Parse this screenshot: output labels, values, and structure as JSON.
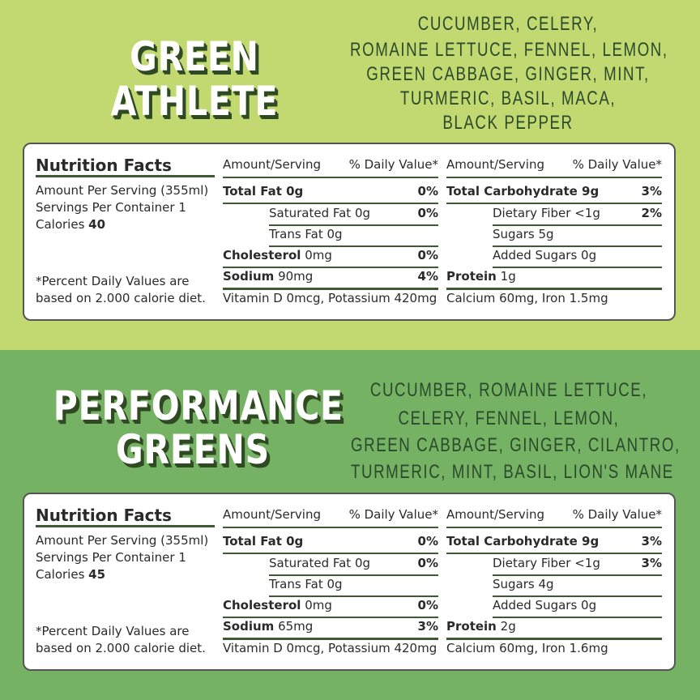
{
  "sections": [
    {
      "title": [
        "GREEN",
        "ATHLETE"
      ],
      "ingredients": [
        "CUCUMBER, CELERY,",
        "ROMAINE LETTUCE, FENNEL, LEMON,",
        "GREEN CABBAGE, GINGER, MINT,",
        "TURMERIC, BASIL, MACA,",
        "BLACK PEPPER"
      ],
      "facts": {
        "heading": "Nutrition Facts",
        "serving": "Amount Per Serving (355ml)",
        "servings": "Servings Per Container 1",
        "calories_label": "Calories",
        "calories": "40",
        "footnote": [
          "*Percent Daily Values are",
          "based on 2.000 calorie diet."
        ],
        "col_headers": [
          [
            "Amount/Serving",
            "% Daily Value*"
          ],
          [
            "Amount/Serving",
            "% Daily Value*"
          ]
        ],
        "left": [
          {
            "label": "Total Fat 0g",
            "dv": "0%"
          },
          {
            "label": "Saturated Fat 0g",
            "dv": "0%"
          },
          {
            "label": "Trans Fat 0g"
          },
          {
            "label": "Cholesterol",
            "amount": "0mg",
            "dv": "0%"
          },
          {
            "label": "Sodium",
            "amount": "90mg",
            "dv": "4%"
          }
        ],
        "right": [
          {
            "label": "Total Carbohydrate 9g",
            "dv": "3%"
          },
          {
            "label": "Dietary Fiber <1g",
            "dv": "2%"
          },
          {
            "label": "Sugars 5g"
          },
          {
            "label": "Added Sugars 0g"
          },
          {
            "label": "Protein",
            "amount": "1g"
          }
        ],
        "bottom": [
          "Vitamin D 0mcg, Potassium 420mg",
          "Calcium 60mg, Iron 1.5mg"
        ]
      }
    },
    {
      "title": [
        "PERFORMANCE",
        "GREENS"
      ],
      "ingredients": [
        "CUCUMBER, ROMAINE LETTUCE,",
        "CELERY, FENNEL, LEMON,",
        "GREEN CABBAGE, GINGER, CILANTRO,",
        "TURMERIC, MINT, BASIL, LION'S MANE"
      ],
      "facts": {
        "heading": "Nutrition Facts",
        "serving": "Amount Per Serving (355ml)",
        "servings": "Servings Per Container 1",
        "calories_label": "Calories",
        "calories": "45",
        "footnote": [
          "*Percent Daily Values are",
          "based on 2.000 calorie diet."
        ],
        "col_headers": [
          [
            "Amount/Serving",
            "% Daily Value*"
          ],
          [
            "Amount/Serving",
            "% Daily Value*"
          ]
        ],
        "left": [
          {
            "label": "Total Fat 0g",
            "dv": "0%"
          },
          {
            "label": "Saturated Fat 0g",
            "dv": "0%"
          },
          {
            "label": "Trans Fat 0g"
          },
          {
            "label": "Cholesterol",
            "amount": "0mg",
            "dv": "0%"
          },
          {
            "label": "Sodium",
            "amount": "65mg",
            "dv": "3%"
          }
        ],
        "right": [
          {
            "label": "Total Carbohydrate 9g",
            "dv": "3%"
          },
          {
            "label": "Dietary Fiber <1g",
            "dv": "3%"
          },
          {
            "label": "Sugars 4g"
          },
          {
            "label": "Added Sugars 0g"
          },
          {
            "label": "Protein",
            "amount": "2g"
          }
        ],
        "bottom": [
          "Vitamin D 0mcg, Potassium 420mg",
          "Calcium 60mg, Iron 1.6mg"
        ]
      }
    }
  ]
}
